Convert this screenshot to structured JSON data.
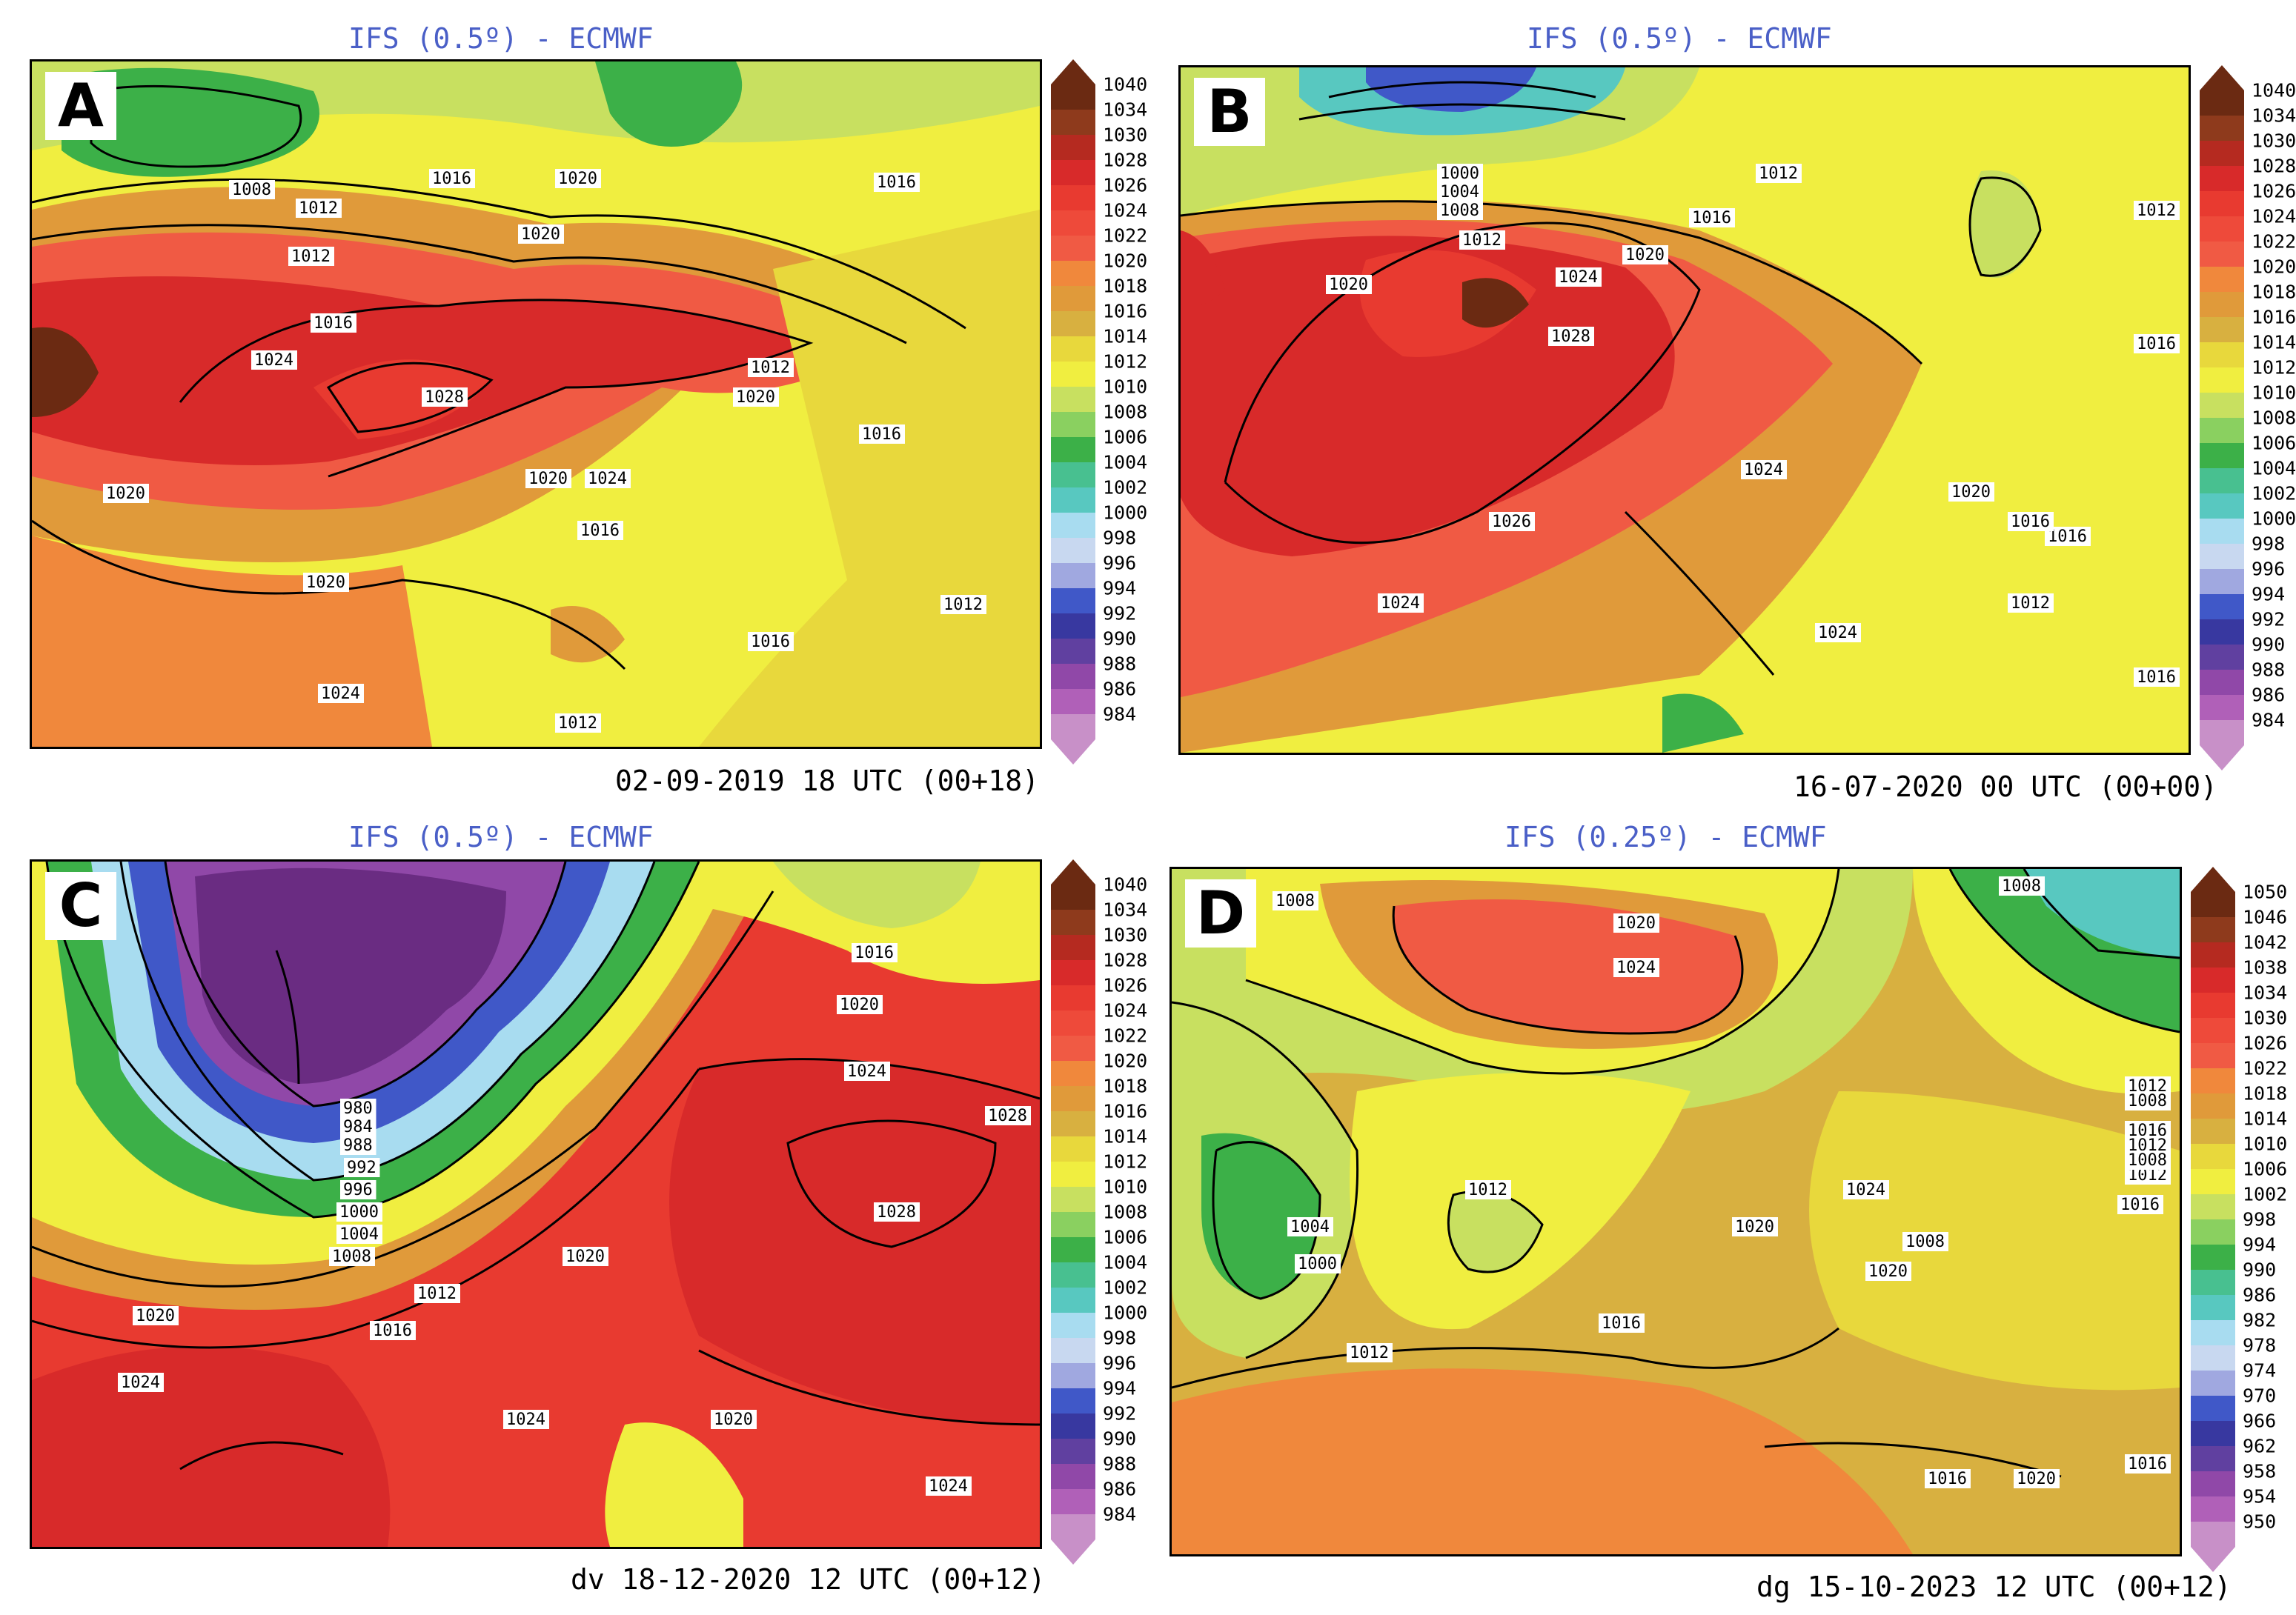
{
  "panels": [
    {
      "label": "A",
      "title": "IFS (0.5º) - ECMWF",
      "date": "02-09-2019 18 UTC (00+18)",
      "contour_labels": [
        "1008",
        "1012",
        "1016",
        "1012",
        "1016",
        "1020",
        "1020",
        "1024",
        "1028",
        "1020",
        "1020",
        "1024",
        "1020",
        "1016",
        "1024",
        "1016",
        "1020",
        "1016",
        "1012",
        "1016",
        "1012",
        "1012"
      ],
      "colorbar": [
        "1040",
        "1034",
        "1030",
        "1028",
        "1026",
        "1024",
        "1022",
        "1020",
        "1018",
        "1016",
        "1014",
        "1012",
        "1010",
        "1008",
        "1006",
        "1004",
        "1002",
        "1000",
        "998",
        "996",
        "994",
        "992",
        "990",
        "988",
        "986",
        "984"
      ]
    },
    {
      "label": "B",
      "title": "IFS (0.5º) - ECMWF",
      "date": "16-07-2020 00 UTC (00+00)",
      "contour_labels": [
        "1000",
        "1004",
        "1008",
        "1012",
        "1012",
        "1016",
        "1016",
        "1020",
        "1020",
        "1024",
        "1028",
        "1012",
        "1024",
        "1016",
        "1026",
        "1024",
        "1024",
        "1020",
        "1016",
        "1012",
        "1012",
        "1016"
      ],
      "colorbar": [
        "1040",
        "1034",
        "1030",
        "1028",
        "1026",
        "1024",
        "1022",
        "1020",
        "1018",
        "1016",
        "1014",
        "1012",
        "1010",
        "1008",
        "1006",
        "1004",
        "1002",
        "1000",
        "998",
        "996",
        "994",
        "992",
        "990",
        "988",
        "986",
        "984"
      ]
    },
    {
      "label": "C",
      "title": "IFS (0.5º) - ECMWF",
      "date": "dv 18-12-2020 12 UTC (00+12)",
      "contour_labels": [
        "1016",
        "1020",
        "1024",
        "980",
        "984",
        "988",
        "992",
        "996",
        "1000",
        "1004",
        "1008",
        "1012",
        "1016",
        "1020",
        "1020",
        "1028",
        "1028",
        "1024",
        "1020",
        "1024",
        "1024"
      ],
      "colorbar": [
        "1040",
        "1034",
        "1030",
        "1028",
        "1026",
        "1024",
        "1022",
        "1020",
        "1018",
        "1016",
        "1014",
        "1012",
        "1010",
        "1008",
        "1006",
        "1004",
        "1002",
        "1000",
        "998",
        "996",
        "994",
        "992",
        "990",
        "988",
        "986",
        "984"
      ]
    },
    {
      "label": "D",
      "title": "IFS (0.25º) - ECMWF",
      "date": "dg 15-10-2023 12 UTC (00+12)",
      "contour_labels": [
        "1008",
        "1008",
        "1020",
        "1024",
        "1012",
        "1024",
        "1004",
        "1008",
        "1000",
        "1020",
        "1012",
        "1016",
        "1008",
        "1012",
        "1012",
        "1016",
        "1016",
        "1008",
        "1012",
        "1020",
        "1016",
        "1020",
        "1016"
      ],
      "colorbar": [
        "1050",
        "1046",
        "1042",
        "1038",
        "1034",
        "1030",
        "1026",
        "1022",
        "1018",
        "1014",
        "1010",
        "1006",
        "1002",
        "998",
        "994",
        "990",
        "986",
        "982",
        "978",
        "974",
        "970",
        "966",
        "962",
        "958",
        "954",
        "950"
      ]
    }
  ],
  "colors": {
    "title": "#4a5fc7",
    "scale": [
      "#6b2a12",
      "#8e3a1c",
      "#b52a20",
      "#d82a2a",
      "#e83a30",
      "#ee4a3a",
      "#f05a44",
      "#f0883c",
      "#e09a3a",
      "#d8b040",
      "#e8d83c",
      "#f0ee40",
      "#c8e060",
      "#8ad060",
      "#3cb048",
      "#48c090",
      "#58c8c0",
      "#a8dcf0",
      "#c8d8f0",
      "#a0a8e0",
      "#4058c8",
      "#3838a0",
      "#6040a0",
      "#9048a8",
      "#b060b8",
      "#c890c8"
    ]
  }
}
